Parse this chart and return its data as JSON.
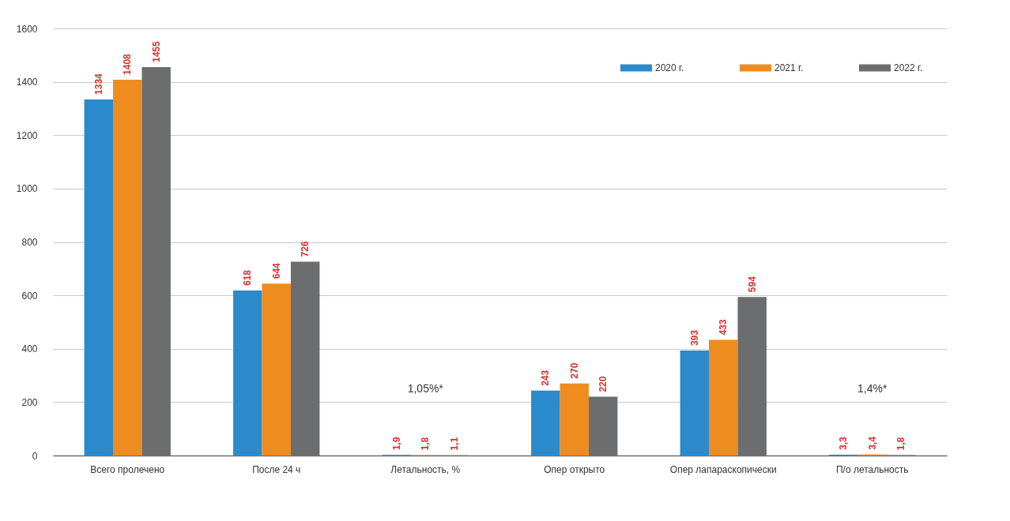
{
  "chart_data": {
    "type": "bar",
    "categories": [
      "Всего пролечено",
      "После 24 ч",
      "Летальность, %",
      "Опер открыто",
      "Опер лапараскопически",
      "П/о летальность"
    ],
    "series": [
      {
        "name": "2020 г.",
        "color": "#2b8acb",
        "values": [
          1334,
          618,
          1.9,
          243,
          393,
          3.3
        ],
        "value_labels": [
          "1334",
          "618",
          "1,9",
          "243",
          "393",
          "3,3"
        ]
      },
      {
        "name": "2021 г.",
        "color": "#ef8c1f",
        "values": [
          1408,
          644,
          1.8,
          270,
          433,
          3.4
        ],
        "value_labels": [
          "1408",
          "644",
          "1,8",
          "270",
          "433",
          "3,4"
        ]
      },
      {
        "name": "2022 г.",
        "color": "#6b6d6f",
        "values": [
          1455,
          726,
          1.1,
          220,
          594,
          1.8
        ],
        "value_labels": [
          "1455",
          "726",
          "1,1",
          "220",
          "594",
          "1,8"
        ]
      }
    ],
    "ylim": [
      0,
      1600
    ],
    "yticks": [
      0,
      200,
      400,
      600,
      800,
      1000,
      1200,
      1400,
      1600
    ],
    "grid": "y",
    "legend": "top right",
    "annotations": [
      "1,05%*",
      "1,4%*"
    ]
  }
}
